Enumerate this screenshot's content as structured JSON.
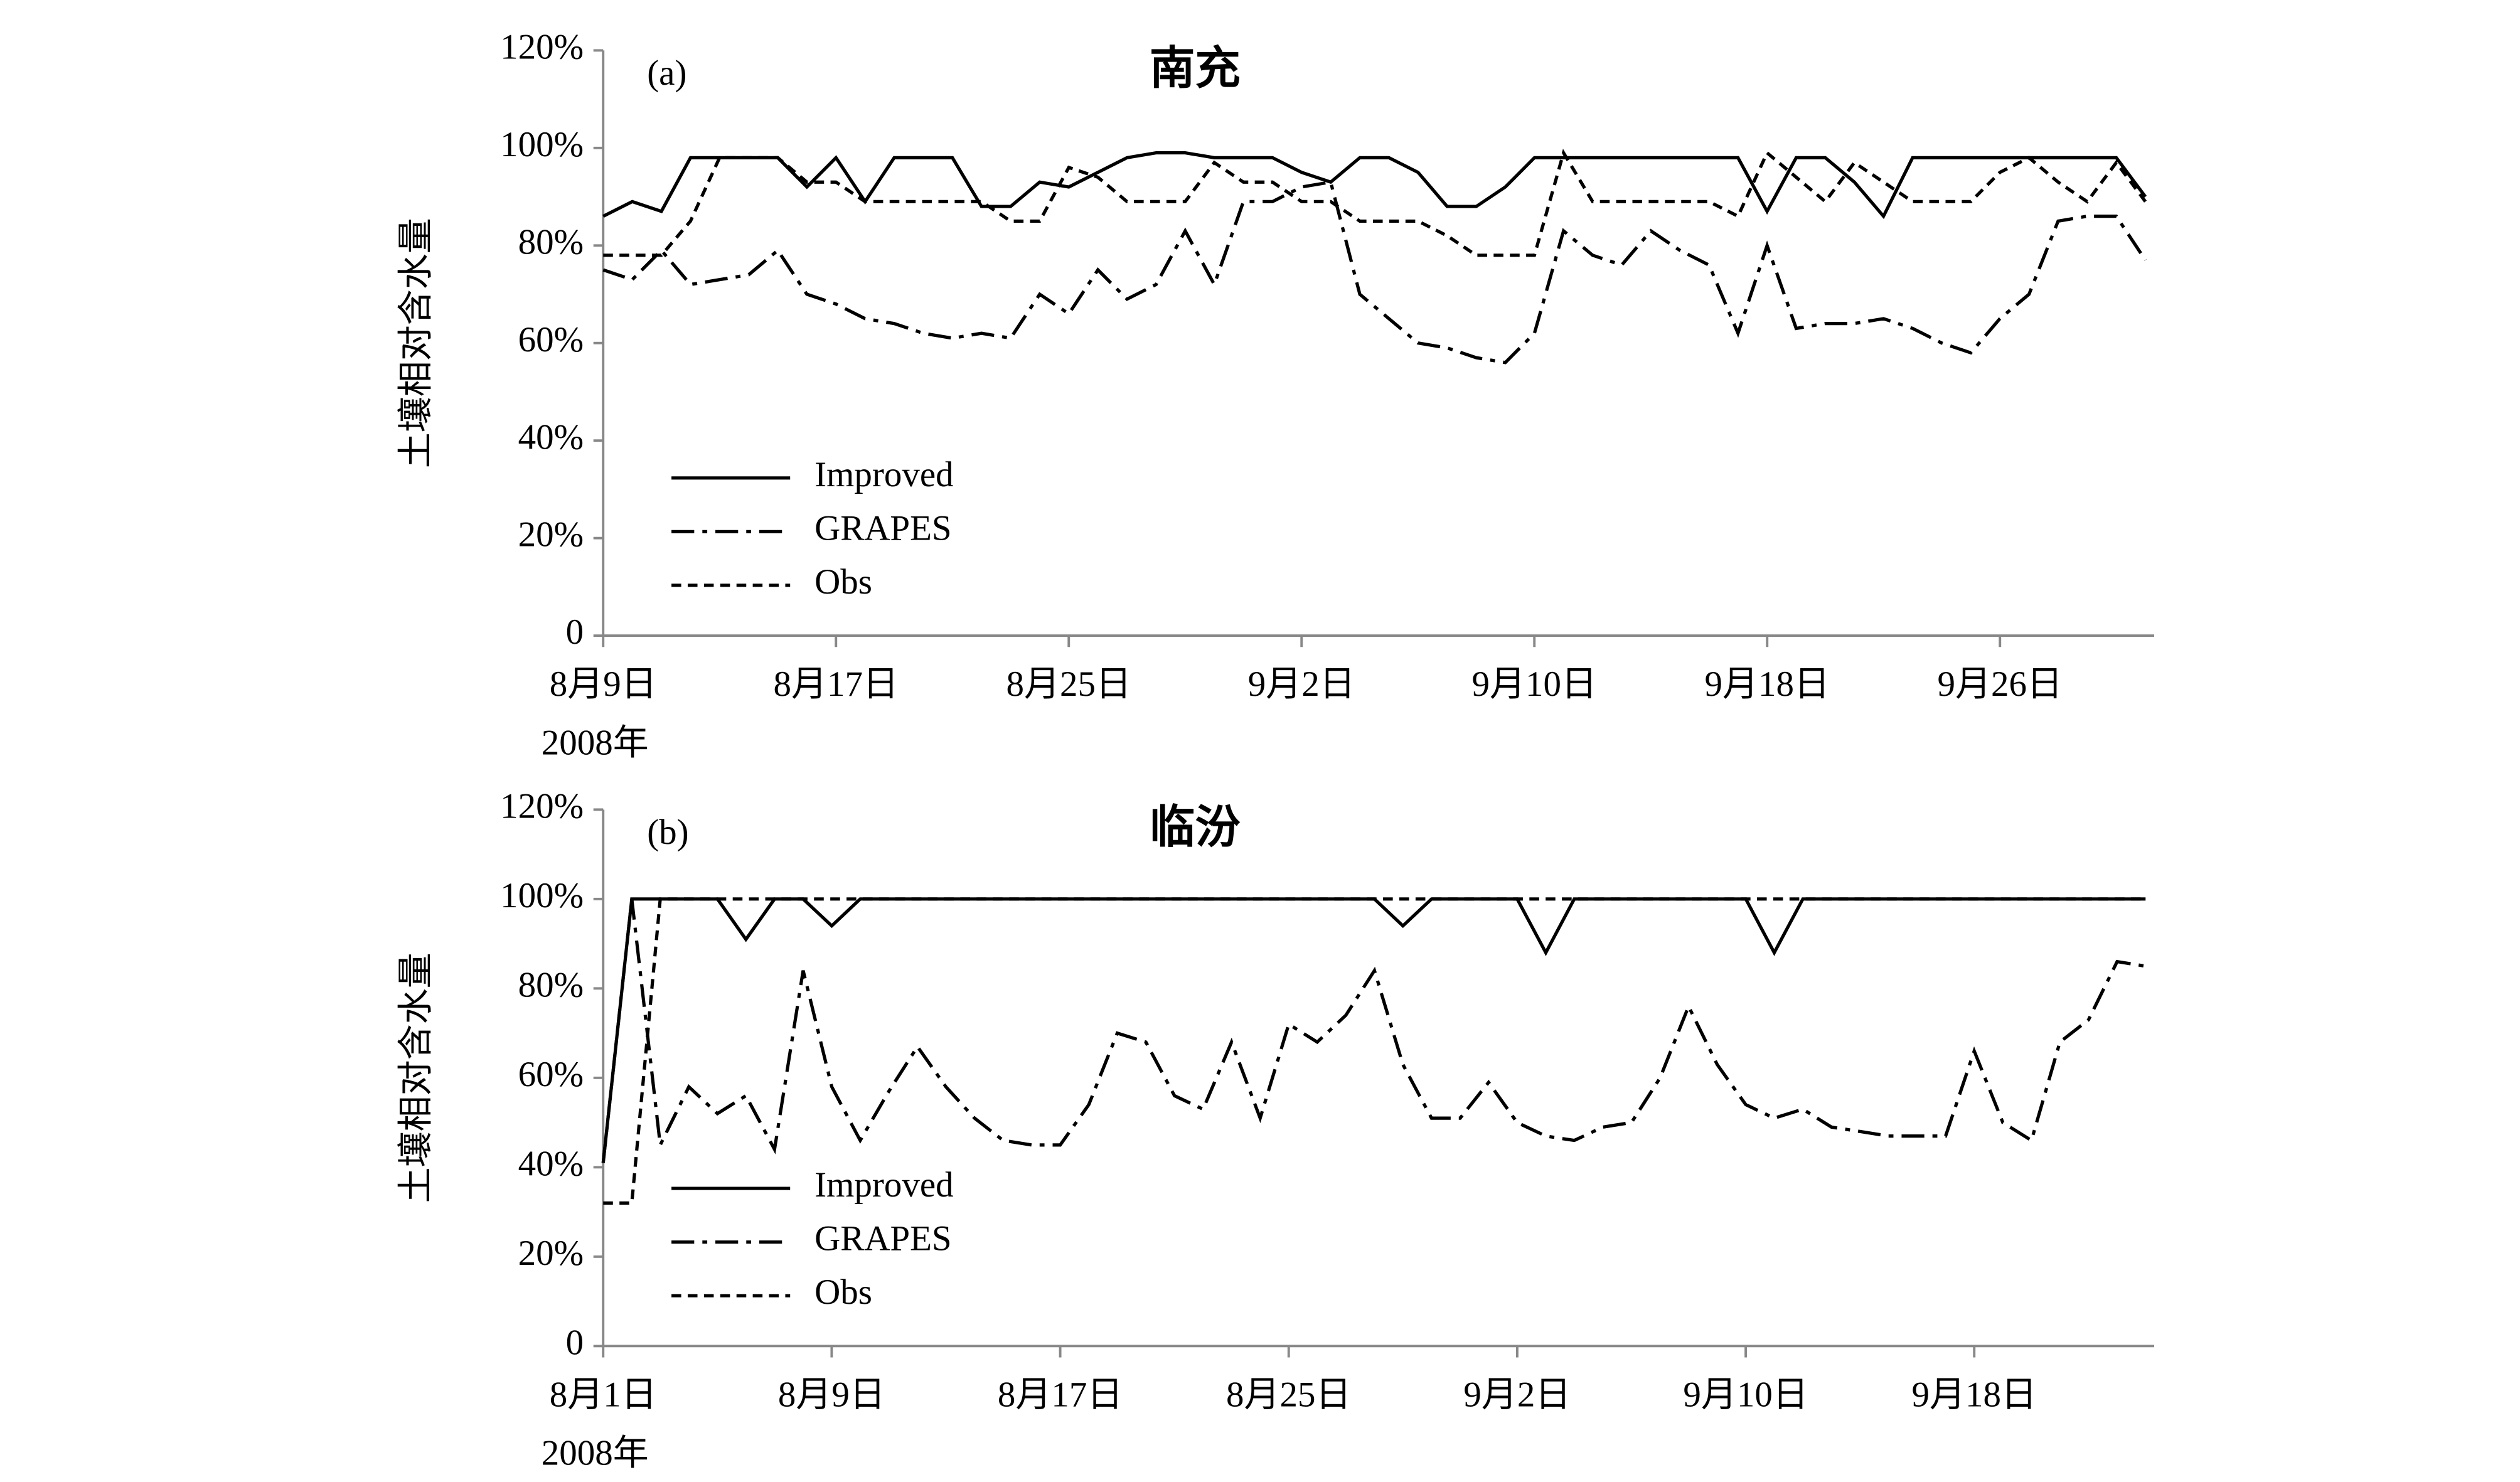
{
  "chart_data": [
    {
      "type": "line",
      "title": "南充",
      "annotation": "(a)",
      "ylabel": "土壤相对含水量",
      "xlabel": "2008年",
      "categories": [
        "8月9日",
        null,
        null,
        null,
        null,
        null,
        null,
        null,
        "8月17日",
        null,
        null,
        null,
        null,
        null,
        null,
        null,
        "8月25日",
        null,
        null,
        null,
        null,
        null,
        null,
        null,
        "9月2日",
        null,
        null,
        null,
        null,
        null,
        null,
        null,
        "9月10日",
        null,
        null,
        null,
        null,
        null,
        null,
        null,
        "9月18日",
        null,
        null,
        null,
        null,
        null,
        null,
        null,
        "9月26日",
        null,
        null,
        null,
        null,
        null
      ],
      "series": [
        {
          "name": "Improved",
          "color": "#000000",
          "dash": "solid",
          "values": [
            86,
            89,
            87,
            98,
            98,
            98,
            98,
            92,
            98,
            89,
            98,
            98,
            98,
            88,
            88,
            93,
            92,
            95,
            98,
            99,
            99,
            98,
            98,
            98,
            95,
            93,
            98,
            98,
            95,
            88,
            88,
            92,
            98,
            98,
            98,
            98,
            98,
            98,
            98,
            98,
            87,
            98,
            98,
            93,
            86,
            98,
            98,
            98,
            98,
            98,
            98,
            98,
            98,
            90
          ]
        },
        {
          "name": "GRAPES",
          "color": "#000000",
          "dash": "dash-dot",
          "values": [
            75,
            73,
            79,
            72,
            73,
            74,
            79,
            70,
            68,
            65,
            64,
            62,
            61,
            62,
            61,
            70,
            66,
            75,
            69,
            72,
            83,
            72,
            89,
            89,
            92,
            93,
            70,
            65,
            60,
            59,
            57,
            56,
            62,
            83,
            78,
            76,
            83,
            79,
            76,
            62,
            80,
            63,
            64,
            64,
            65,
            63,
            60,
            58,
            65,
            70,
            85,
            86,
            86,
            77
          ]
        },
        {
          "name": "Obs",
          "color": "#000000",
          "dash": "dash",
          "values": [
            78,
            78,
            78,
            85,
            98,
            98,
            98,
            93,
            93,
            89,
            89,
            89,
            89,
            89,
            85,
            85,
            96,
            94,
            89,
            89,
            89,
            97,
            93,
            93,
            89,
            89,
            85,
            85,
            85,
            82,
            78,
            78,
            78,
            99,
            89,
            89,
            89,
            89,
            89,
            86,
            99,
            94,
            89,
            97,
            93,
            89,
            89,
            89,
            95,
            98,
            93,
            89,
            97,
            89
          ]
        }
      ],
      "ylim": [
        0,
        120
      ],
      "yticks": [
        0,
        {
          "value": 20,
          "label": "20%"
        },
        {
          "value": 40,
          "label": "40%"
        },
        {
          "value": 60,
          "label": "60%"
        },
        {
          "value": 80,
          "label": "80%"
        },
        {
          "value": 100,
          "label": "100%"
        },
        {
          "value": 120,
          "label": "120%"
        }
      ],
      "legend": "lower left"
    },
    {
      "type": "line",
      "title": "临汾",
      "annotation": "(b)",
      "ylabel": "土壤相对含水量",
      "xlabel": "2008年",
      "categories": [
        "8月1日",
        null,
        null,
        null,
        null,
        null,
        null,
        null,
        "8月9日",
        null,
        null,
        null,
        null,
        null,
        null,
        null,
        "8月17日",
        null,
        null,
        null,
        null,
        null,
        null,
        null,
        "8月25日",
        null,
        null,
        null,
        null,
        null,
        null,
        null,
        "9月2日",
        null,
        null,
        null,
        null,
        null,
        null,
        null,
        "9月10日",
        null,
        null,
        null,
        null,
        null,
        null,
        null,
        "9月18日",
        null,
        null,
        null,
        null,
        null,
        null
      ],
      "series": [
        {
          "name": "Improved",
          "color": "#000000",
          "dash": "solid",
          "values": [
            41,
            100,
            100,
            100,
            100,
            91,
            100,
            100,
            94,
            100,
            100,
            100,
            100,
            100,
            100,
            100,
            100,
            100,
            100,
            100,
            100,
            100,
            100,
            100,
            100,
            100,
            100,
            100,
            94,
            100,
            100,
            100,
            100,
            88,
            100,
            100,
            100,
            100,
            100,
            100,
            100,
            88,
            100,
            100,
            100,
            100,
            100,
            100,
            100,
            100,
            100,
            100,
            100,
            100,
            100
          ]
        },
        {
          "name": "GRAPES",
          "color": "#000000",
          "dash": "dash-dot",
          "values": [
            41,
            100,
            45,
            58,
            52,
            56,
            44,
            84,
            58,
            46,
            57,
            67,
            58,
            51,
            46,
            45,
            45,
            54,
            70,
            68,
            56,
            53,
            68,
            51,
            72,
            68,
            74,
            84,
            63,
            51,
            51,
            59,
            50,
            47,
            46,
            49,
            50,
            60,
            76,
            63,
            54,
            51,
            53,
            49,
            48,
            47,
            47,
            47,
            66,
            50,
            46,
            68,
            73,
            86,
            85
          ]
        },
        {
          "name": "Obs",
          "color": "#000000",
          "dash": "dash",
          "values": [
            32,
            32,
            100,
            100,
            100,
            100,
            100,
            100,
            100,
            100,
            100,
            100,
            100,
            100,
            100,
            100,
            100,
            100,
            100,
            100,
            100,
            100,
            100,
            100,
            100,
            100,
            100,
            100,
            100,
            100,
            100,
            100,
            100,
            100,
            100,
            100,
            100,
            100,
            100,
            100,
            100,
            100,
            100,
            100,
            100,
            100,
            100,
            100,
            100,
            100,
            100,
            100,
            100,
            100,
            100
          ]
        }
      ],
      "ylim": [
        0,
        120
      ],
      "yticks": [
        0,
        {
          "value": 20,
          "label": "20%"
        },
        {
          "value": 40,
          "label": "40%"
        },
        {
          "value": 60,
          "label": "60%"
        },
        {
          "value": 80,
          "label": "80%"
        },
        {
          "value": 100,
          "label": "100%"
        },
        {
          "value": 120,
          "label": "120%"
        }
      ],
      "legend": "lower left"
    }
  ]
}
